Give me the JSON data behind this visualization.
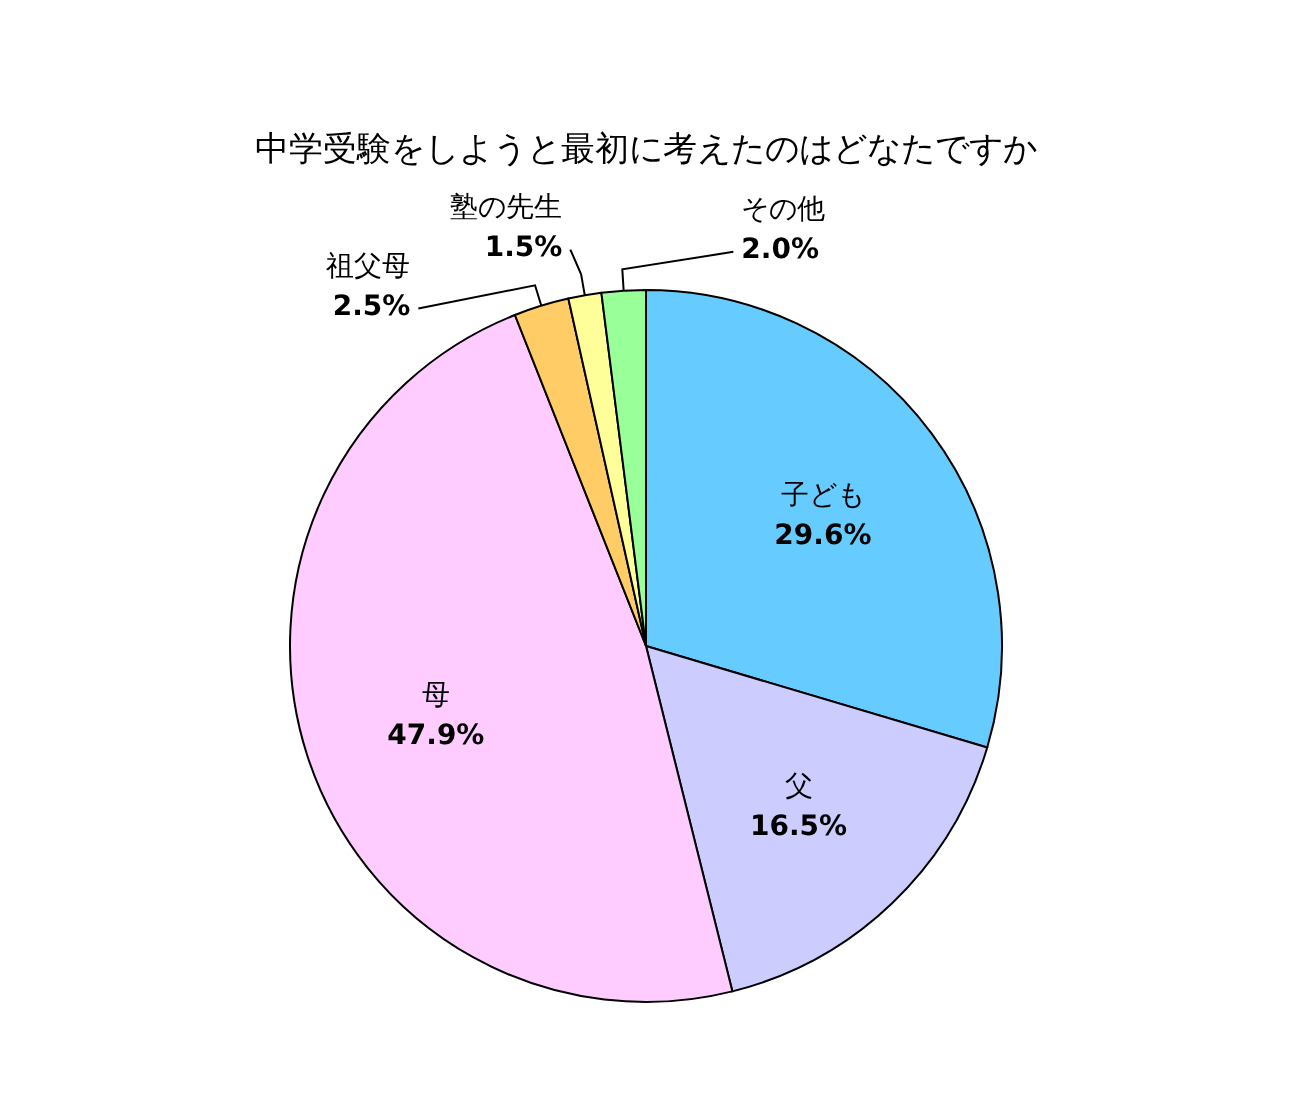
{
  "chart_data": {
    "type": "pie",
    "title": "中学受験をしようと最初に考えたのはどなたですか",
    "categories": [
      "子ども",
      "父",
      "母",
      "祖父母",
      "塾の先生",
      "その他"
    ],
    "values": [
      29.6,
      16.5,
      47.9,
      2.5,
      1.5,
      2.0
    ],
    "colors": [
      "#66ccff",
      "#ccccff",
      "#ffccff",
      "#ffcc66",
      "#ffff99",
      "#99ff99"
    ],
    "value_labels": [
      "29.6%",
      "16.5%",
      "47.9%",
      "2.5%",
      "1.5%",
      "2.0%"
    ]
  }
}
